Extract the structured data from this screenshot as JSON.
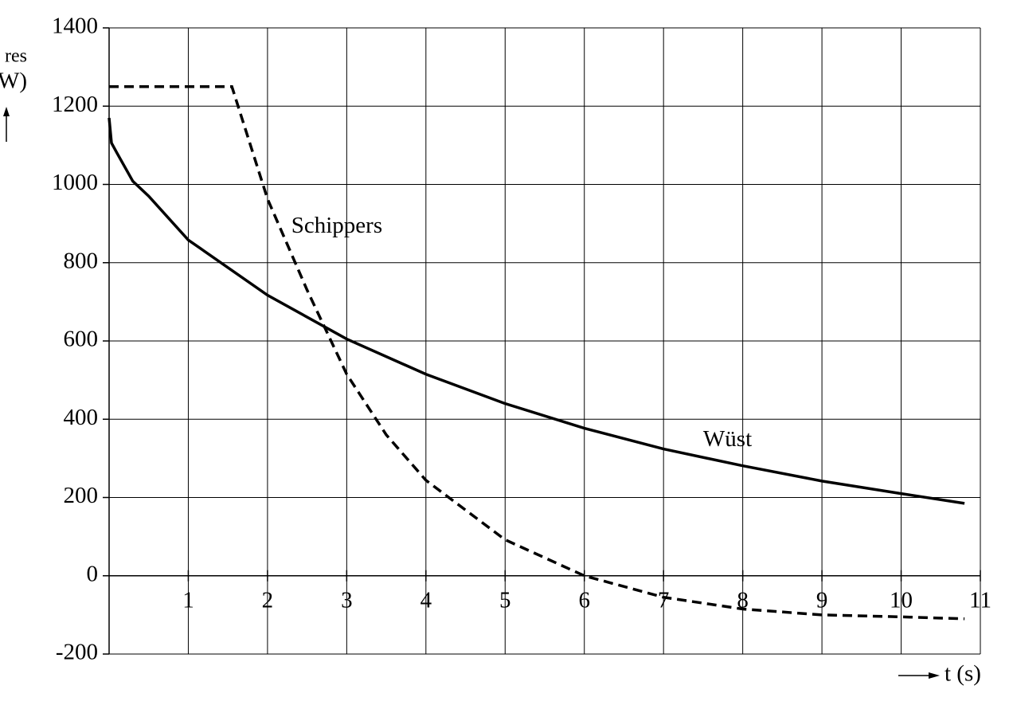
{
  "chart_data": {
    "type": "line",
    "ylabel_lines": [
      "res",
      "W)"
    ],
    "xlabel": "t (s)",
    "xlim": [
      0,
      11
    ],
    "xticks": [
      1,
      2,
      3,
      4,
      5,
      6,
      7,
      8,
      9,
      10,
      11
    ],
    "ylim": [
      -200,
      1400
    ],
    "yticks": [
      -200,
      0,
      200,
      400,
      600,
      800,
      1000,
      1200,
      1400
    ],
    "grid": true,
    "series": [
      {
        "name": "Wüst",
        "color": "#000000",
        "dash": false,
        "x": [
          0,
          0.03,
          0.1,
          0.3,
          0.5,
          1,
          2,
          3,
          4,
          5,
          6,
          7,
          8,
          9,
          10,
          10.8
        ],
        "values": [
          1170,
          1106,
          1080,
          1008,
          970,
          858,
          717,
          605,
          515,
          440,
          377,
          324,
          281,
          242,
          210,
          185
        ]
      },
      {
        "name": "Schippers",
        "color": "#000000",
        "dash": true,
        "x": [
          0,
          1.55,
          2,
          2.5,
          3,
          3.5,
          4,
          5,
          6,
          7,
          8,
          9,
          10,
          10.8
        ],
        "values": [
          1250,
          1250,
          963,
          730,
          515,
          360,
          244,
          92,
          0,
          -55,
          -85,
          -100,
          -105,
          -110
        ]
      }
    ],
    "annotations": [
      {
        "text": "Schippers",
        "x": 2.3,
        "y": 890
      },
      {
        "text": "Wüst",
        "x": 7.5,
        "y": 345
      }
    ]
  }
}
